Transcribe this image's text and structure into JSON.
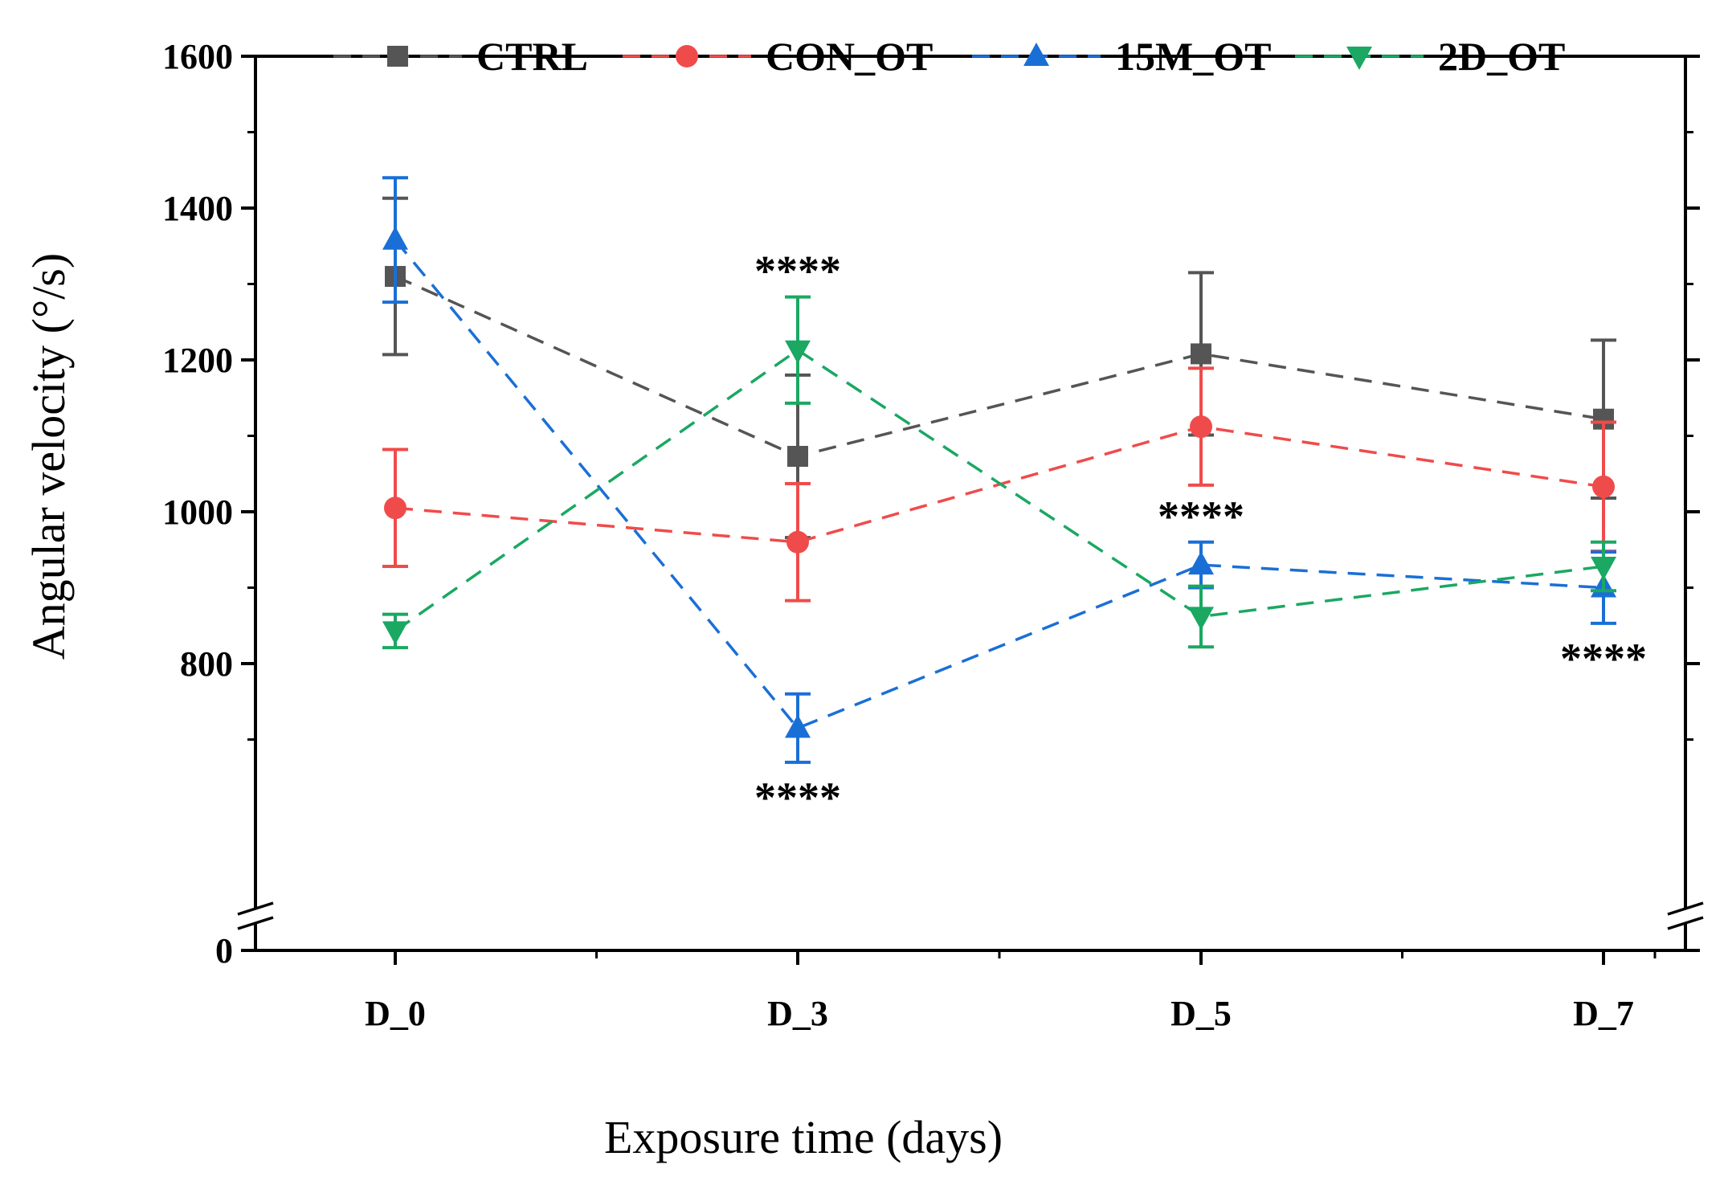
{
  "chart_data": {
    "type": "line",
    "xlabel": "Exposure time (days)",
    "ylabel": "Angular velocity (°/s)",
    "categories": [
      "D_0",
      "D_3",
      "D_5",
      "D_7"
    ],
    "ylim": [
      600,
      1600
    ],
    "ybreak": {
      "low": 0,
      "high": 600
    },
    "yticks": [
      800,
      1000,
      1200,
      1400,
      1600
    ],
    "ytick_labels": [
      "800",
      "1000",
      "1200",
      "1400",
      "1600"
    ],
    "zero_label": "0",
    "legend_position": "top",
    "series": [
      {
        "name": "CTRL",
        "color": "#555555",
        "marker": "square",
        "values": [
          1310,
          1073,
          1208,
          1122
        ],
        "errors": [
          103,
          107,
          107,
          104
        ]
      },
      {
        "name": "CON_OT",
        "color": "#f04b4b",
        "marker": "circle",
        "values": [
          1005,
          960,
          1112,
          1033
        ],
        "errors": [
          77,
          77,
          77,
          85
        ]
      },
      {
        "name": "15M_OT",
        "color": "#1a6fd6",
        "marker": "triangle-up",
        "values": [
          1358,
          715,
          930,
          900
        ],
        "errors": [
          82,
          45,
          30,
          47
        ]
      },
      {
        "name": "2D_OT",
        "color": "#1aa862",
        "marker": "triangle-down",
        "values": [
          843,
          1213,
          862,
          928
        ],
        "errors": [
          22,
          70,
          40,
          32
        ]
      }
    ],
    "annotations": [
      {
        "text": "****",
        "category": "D_3",
        "y": 1283,
        "placement": "above"
      },
      {
        "text": "****",
        "category": "D_3",
        "y": 670,
        "placement": "below"
      },
      {
        "text": "****",
        "category": "D_5",
        "y": 960,
        "placement": "above"
      },
      {
        "text": "****",
        "category": "D_7",
        "y": 853,
        "placement": "below"
      }
    ]
  }
}
